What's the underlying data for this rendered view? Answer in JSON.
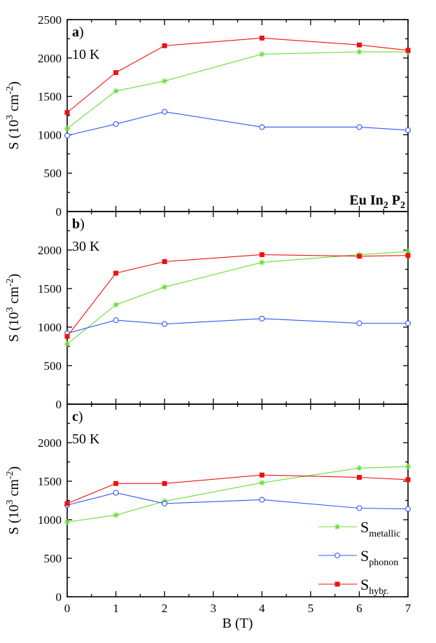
{
  "chart_data": [
    {
      "type": "line",
      "panel_letter": "a",
      "panel_paren": ")",
      "temperature_label": "10 K",
      "compound": {
        "parts": [
          "Eu In",
          "2",
          " P",
          "2"
        ]
      },
      "x": [
        0,
        1,
        2,
        4,
        6,
        7
      ],
      "xlim": [
        0,
        7
      ],
      "ylim": [
        0,
        2500
      ],
      "yticks": [
        0,
        500,
        1000,
        1500,
        2000,
        2500
      ],
      "ylabel": {
        "main": "S (10",
        "sup1": "3",
        "mid": " cm",
        "sup2": "-2",
        "end": ")"
      },
      "series": [
        {
          "key": "metallic",
          "color": "#66dd33",
          "marker": "star",
          "values": [
            1080,
            1570,
            1700,
            2050,
            2080,
            2080
          ]
        },
        {
          "key": "phonon",
          "color": "#3355ee",
          "marker": "circle",
          "values": [
            990,
            1140,
            1300,
            1100,
            1100,
            1060
          ]
        },
        {
          "key": "hybr",
          "color": "#ee1111",
          "marker": "square",
          "values": [
            1290,
            1810,
            2160,
            2260,
            2170,
            2100
          ]
        }
      ]
    },
    {
      "type": "line",
      "panel_letter": "b",
      "panel_paren": ")",
      "temperature_label": "30 K",
      "x": [
        0,
        1,
        2,
        4,
        6,
        7
      ],
      "xlim": [
        0,
        7
      ],
      "ylim": [
        0,
        2500
      ],
      "yticks": [
        0,
        500,
        1000,
        1500,
        2000
      ],
      "ylabel": {
        "main": "S (10",
        "sup1": "3",
        "mid": " cm",
        "sup2": "-2",
        "end": ")"
      },
      "series": [
        {
          "key": "metallic",
          "color": "#66dd33",
          "marker": "star",
          "values": [
            780,
            1290,
            1520,
            1840,
            1940,
            1980
          ]
        },
        {
          "key": "phonon",
          "color": "#3355ee",
          "marker": "circle",
          "values": [
            920,
            1090,
            1040,
            1110,
            1050,
            1050
          ]
        },
        {
          "key": "hybr",
          "color": "#ee1111",
          "marker": "square",
          "values": [
            880,
            1700,
            1850,
            1940,
            1920,
            1930
          ]
        }
      ]
    },
    {
      "type": "line",
      "panel_letter": "c",
      "panel_paren": ")",
      "temperature_label": "50 K",
      "x": [
        0,
        1,
        2,
        4,
        6,
        7
      ],
      "xlim": [
        0,
        7
      ],
      "ylim": [
        0,
        2500
      ],
      "yticks": [
        0,
        500,
        1000,
        1500,
        2000
      ],
      "xticks": [
        0,
        1,
        2,
        3,
        4,
        5,
        6,
        7
      ],
      "xlabel": "B (T)",
      "ylabel": {
        "main": "S (10",
        "sup1": "3",
        "mid": " cm",
        "sup2": "-2",
        "end": ")"
      },
      "series": [
        {
          "key": "metallic",
          "color": "#66dd33",
          "marker": "star",
          "values": [
            970,
            1060,
            1240,
            1480,
            1670,
            1690
          ]
        },
        {
          "key": "phonon",
          "color": "#3355ee",
          "marker": "circle",
          "values": [
            1190,
            1350,
            1210,
            1260,
            1150,
            1140
          ]
        },
        {
          "key": "hybr",
          "color": "#ee1111",
          "marker": "square",
          "values": [
            1210,
            1470,
            1470,
            1580,
            1550,
            1520
          ]
        }
      ]
    }
  ],
  "legend": {
    "placement": "bottom-right of panel c",
    "entries": [
      {
        "key": "metallic",
        "symbol": "S",
        "subscript": "metallic",
        "color": "#66dd33",
        "marker": "star"
      },
      {
        "key": "phonon",
        "symbol": "S",
        "subscript": "phonon",
        "color": "#3355ee",
        "marker": "circle"
      },
      {
        "key": "hybr",
        "symbol": "S",
        "subscript": "hybr.",
        "color": "#ee1111",
        "marker": "square"
      }
    ]
  }
}
